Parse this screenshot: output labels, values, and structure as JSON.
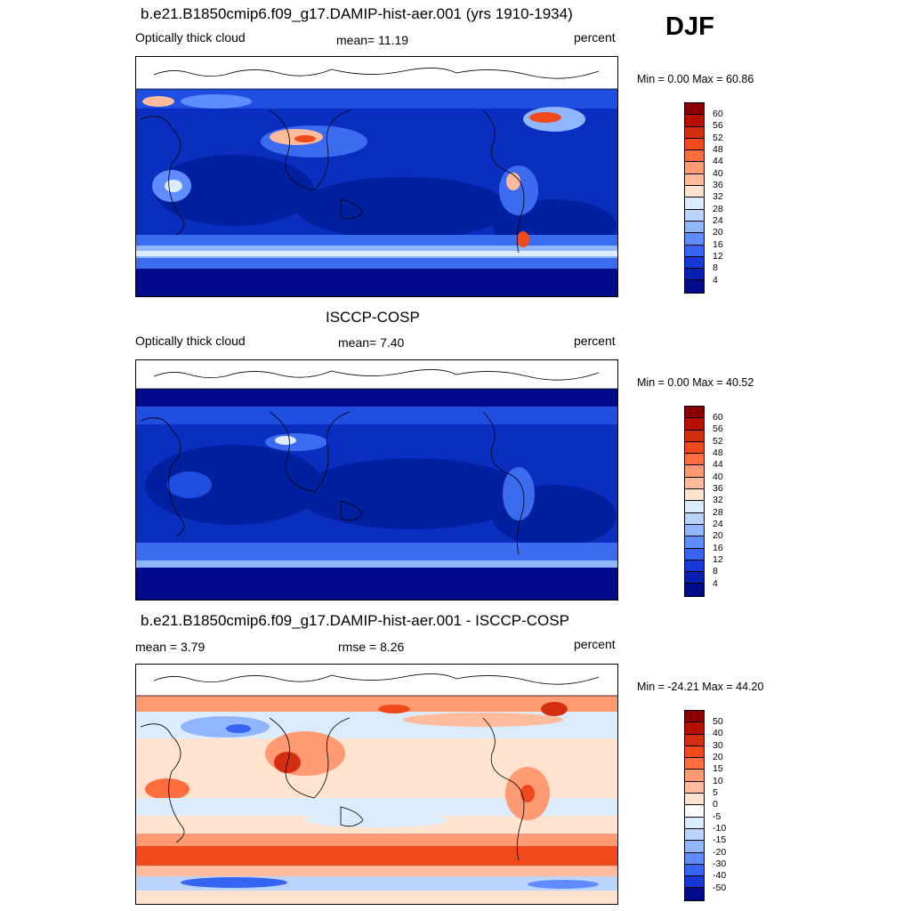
{
  "season_label": "DJF",
  "panels": [
    {
      "title": "b.e21.B1850cmip6.f09_g17.DAMIP-hist-aer.001 (yrs 1910-1934)",
      "left_label": "Optically thick cloud",
      "center_label": "mean=  11.19",
      "right_label": "percent",
      "minmax": "Min =   0.00 Max =  60.86",
      "colorbar_labels": [
        "60",
        "56",
        "52",
        "48",
        "44",
        "40",
        "36",
        "32",
        "28",
        "24",
        "20",
        "16",
        "12",
        "8",
        "4"
      ],
      "colorbar_colors": [
        "#8b0000",
        "#b81000",
        "#d42e10",
        "#f04a1c",
        "#ff6e3c",
        "#ff9a72",
        "#ffbb9c",
        "#ffe3ce",
        "#dcecff",
        "#bad4ff",
        "#8fb6ff",
        "#5f8cff",
        "#3565f2",
        "#1838d6",
        "#0820b0",
        "#000a8a"
      ]
    },
    {
      "title": "ISCCP-COSP",
      "left_label": "Optically thick cloud",
      "center_label": "mean=   7.40",
      "right_label": "percent",
      "minmax": "Min =   0.00 Max =  40.52",
      "colorbar_labels": [
        "60",
        "56",
        "52",
        "48",
        "44",
        "40",
        "36",
        "32",
        "28",
        "24",
        "20",
        "16",
        "12",
        "8",
        "4"
      ],
      "colorbar_colors": [
        "#8b0000",
        "#b81000",
        "#d42e10",
        "#f04a1c",
        "#ff6e3c",
        "#ff9a72",
        "#ffbb9c",
        "#ffe3ce",
        "#dcecff",
        "#bad4ff",
        "#8fb6ff",
        "#5f8cff",
        "#3565f2",
        "#1838d6",
        "#0820b0",
        "#000a8a"
      ]
    },
    {
      "title": "b.e21.B1850cmip6.f09_g17.DAMIP-hist-aer.001 - ISCCP-COSP",
      "left_label": "mean =   3.79",
      "center_label": "rmse =   8.26",
      "right_label": "percent",
      "minmax": "Min = -24.21 Max =  44.20",
      "colorbar_labels": [
        "50",
        "40",
        "30",
        "20",
        "15",
        "10",
        "5",
        "0",
        "-5",
        "-10",
        "-15",
        "-20",
        "-30",
        "-40",
        "-50"
      ],
      "colorbar_colors": [
        "#8b0000",
        "#b81000",
        "#d42e10",
        "#f04a1c",
        "#ff6e3c",
        "#ff9a72",
        "#ffbb9c",
        "#ffe3ce",
        "#ffffff",
        "#dcecff",
        "#bad4ff",
        "#8fb6ff",
        "#5f8cff",
        "#3565f2",
        "#1838d6",
        "#000a8a"
      ]
    }
  ]
}
